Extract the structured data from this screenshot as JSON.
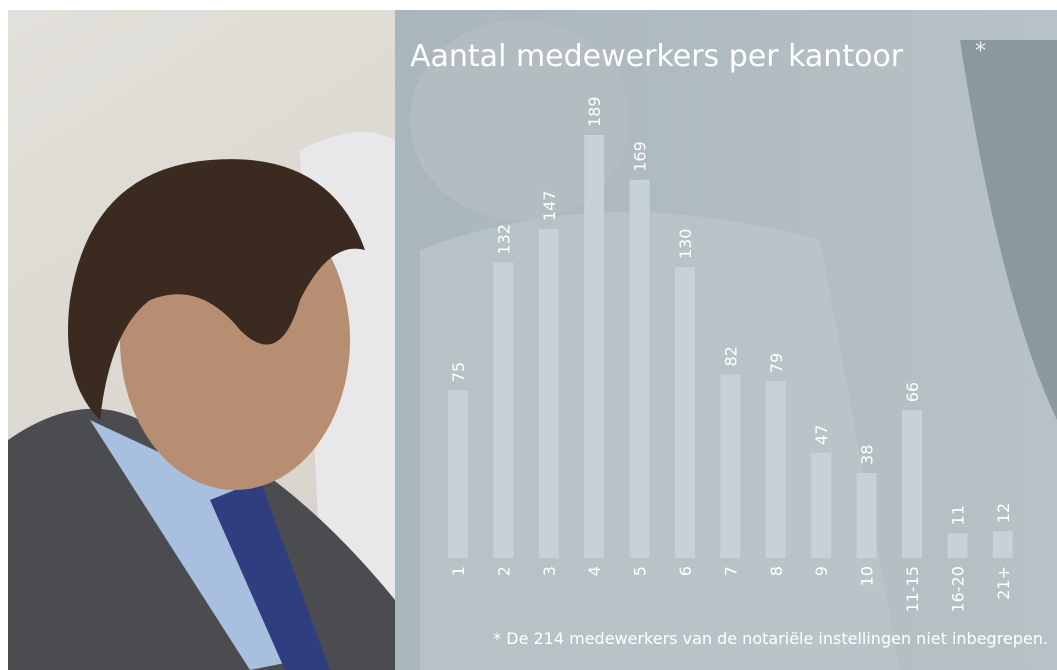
{
  "chart_data": {
    "type": "bar",
    "title": "Aantal medewerkers per kantoor",
    "title_marker": "*",
    "footnote": "* De 214 medewerkers van de notariële instellingen niet inbegrepen.",
    "categories": [
      "1",
      "2",
      "3",
      "4",
      "5",
      "6",
      "7",
      "8",
      "9",
      "10",
      "11-15",
      "16-20",
      "21+"
    ],
    "values": [
      75,
      132,
      147,
      189,
      169,
      130,
      82,
      79,
      47,
      38,
      66,
      11,
      12
    ],
    "color": "#c7d2d8"
  }
}
